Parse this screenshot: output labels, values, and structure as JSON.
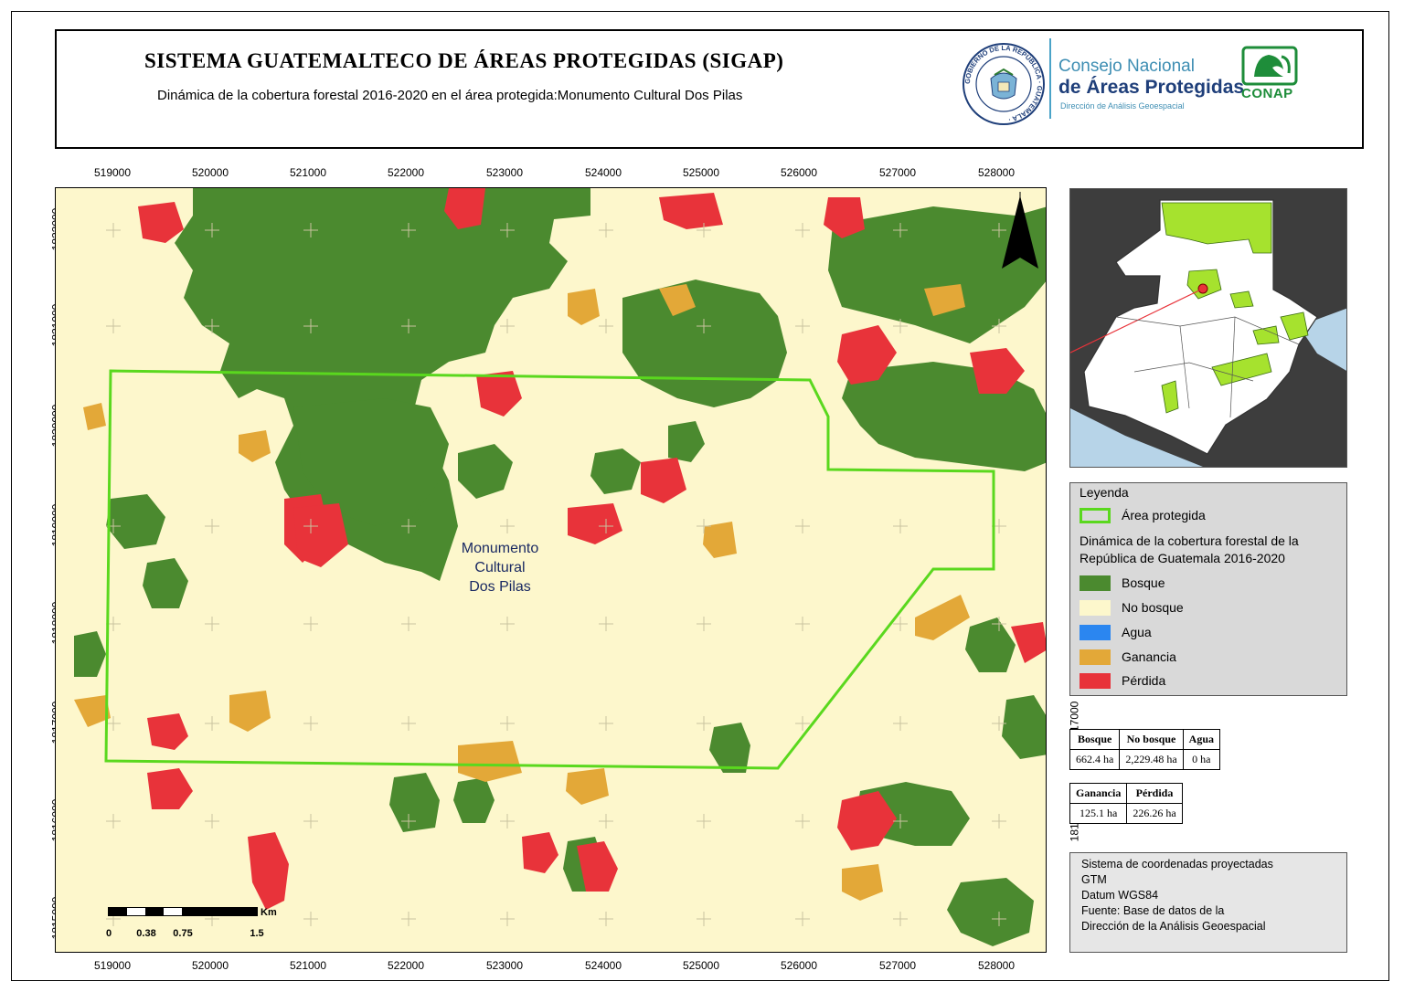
{
  "header": {
    "title": "SISTEMA GUATEMALTECO DE ÁREAS PROTEGIDAS  (SIGAP)",
    "subtitle": "Dinámica de la cobertura forestal 2016-2020 en el área protegida:Monumento Cultural Dos Pilas",
    "seal_text": "GOBIERNO DE LA REPÚBLICA · GUATEMALA ·",
    "logo_consejo_line1": "Consejo Nacional",
    "logo_consejo_line2": "de Áreas Protegidas",
    "logo_consejo_line3": "Dirección de Análisis Geoespacial",
    "logo_conap": "CONAP"
  },
  "map": {
    "x_ticks": [
      "519000",
      "520000",
      "521000",
      "522000",
      "523000",
      "524000",
      "525000",
      "526000",
      "527000",
      "528000"
    ],
    "y_ticks": [
      "1822000",
      "1821000",
      "1820000",
      "1819000",
      "1818000",
      "1817000",
      "1816000",
      "1815000"
    ],
    "area_label": [
      "Monumento",
      "Cultural",
      "Dos Pilas"
    ],
    "north_arrow": "north-arrow",
    "colors": {
      "bosque": "#4b8a2f",
      "no_bosque": "#fdf7cc",
      "agua": "#2b86f0",
      "ganancia": "#e3a838",
      "perdida": "#e8333a",
      "area_protegida": "#5ad81e"
    }
  },
  "scalebar": {
    "unit": "Km",
    "ticks": [
      "0",
      "0.38",
      "0.75",
      "1.5"
    ]
  },
  "legend": {
    "title": "Leyenda",
    "area_label": "Área protegida",
    "subtitle": "Dinámica de la cobertura forestal de la República de Guatemala 2016-2020",
    "items": [
      {
        "label": "Bosque",
        "color": "#4b8a2f"
      },
      {
        "label": "No bosque",
        "color": "#fdf7cc"
      },
      {
        "label": "Agua",
        "color": "#2b86f0"
      },
      {
        "label": "Ganancia",
        "color": "#e3a838"
      },
      {
        "label": "Pérdida",
        "color": "#e8333a"
      }
    ]
  },
  "stats1": {
    "headers": [
      "Bosque",
      "No bosque",
      "Agua"
    ],
    "values": [
      "662.4 ha",
      "2,229.48 ha",
      "0 ha"
    ]
  },
  "stats2": {
    "headers": [
      "Ganancia",
      "Pérdida"
    ],
    "values": [
      "125.1 ha",
      "226.26 ha"
    ]
  },
  "info": {
    "lines": [
      "Sistema de coordenadas proyectadas",
      "GTM",
      "Datum WGS84",
      "Fuente: Base de datos de la",
      "Dirección de la Análisis Geoespacial"
    ]
  }
}
